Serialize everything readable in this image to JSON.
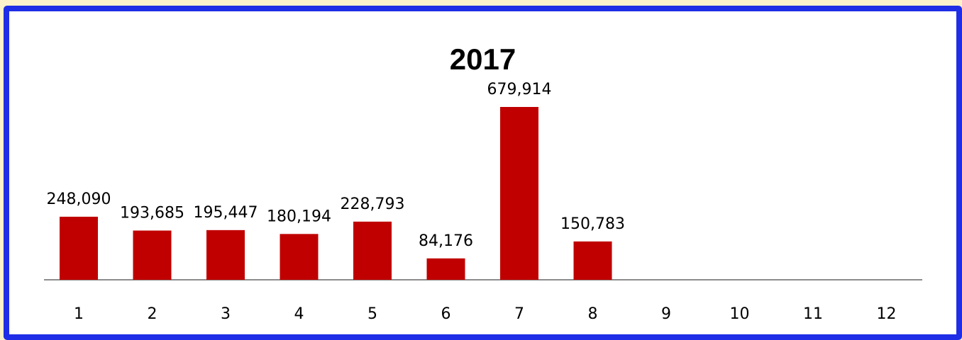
{
  "chart_data": {
    "type": "bar",
    "title": "2017",
    "categories": [
      "1",
      "2",
      "3",
      "4",
      "5",
      "6",
      "7",
      "8",
      "9",
      "10",
      "11",
      "12"
    ],
    "values": [
      248090,
      193685,
      195447,
      180194,
      228793,
      84176,
      679914,
      150783,
      null,
      null,
      null,
      null
    ],
    "value_labels": [
      "248,090",
      "193,685",
      "195,447",
      "180,194",
      "228,793",
      "84,176",
      "679,914",
      "150,783",
      "",
      "",
      "",
      ""
    ],
    "xlabel": "",
    "ylabel": "",
    "ylim": [
      0,
      700000
    ],
    "grid": false,
    "legend": "none"
  },
  "colors": {
    "bar": "#c00000",
    "axis": "#8c8c8c",
    "border": "#1f2ee6",
    "page_background": "#fdf1cc",
    "plot_background": "#ffffff"
  }
}
